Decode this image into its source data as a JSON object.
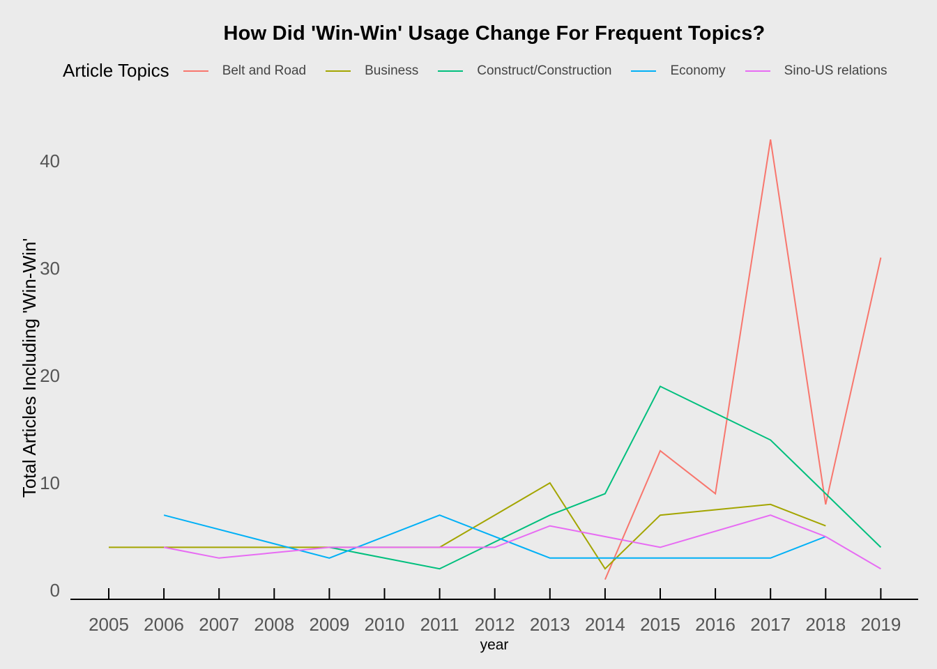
{
  "chart_data": {
    "type": "line",
    "title": "How Did 'Win-Win' Usage Change For Frequent Topics?",
    "xlabel": "year",
    "ylabel": "Total Articles Including 'Win-Win'",
    "xlim": [
      2005,
      2019
    ],
    "ylim": [
      0,
      42
    ],
    "x_ticks": [
      "2005",
      "2006",
      "2007",
      "2008",
      "2009",
      "2010",
      "2011",
      "2012",
      "2013",
      "2014",
      "2015",
      "2016",
      "2017",
      "2018",
      "2019"
    ],
    "y_ticks": [
      "0",
      "10",
      "20",
      "30",
      "40"
    ],
    "grid": false,
    "legend_title": "Article Topics",
    "legend_position": "top",
    "series": [
      {
        "name": "Belt and Road",
        "color": "#f8766d",
        "x": [
          2014,
          2015,
          2016,
          2017,
          2018,
          2019
        ],
        "values": [
          1,
          13,
          9,
          42,
          8,
          31
        ]
      },
      {
        "name": "Business",
        "color": "#a3a500",
        "x": [
          2005,
          2006,
          2007,
          2008,
          2009,
          2010,
          2011,
          2012,
          2013,
          2014,
          2015,
          2016,
          2017,
          2018
        ],
        "values": [
          4,
          4,
          4,
          4,
          4,
          4,
          4,
          7,
          10,
          2,
          7,
          7.5,
          8,
          6
        ]
      },
      {
        "name": "Construct/Construction",
        "color": "#00bf7d",
        "x": [
          2009,
          2011,
          2013,
          2014,
          2015,
          2017,
          2019
        ],
        "values": [
          4,
          2,
          7,
          9,
          19,
          14,
          4
        ]
      },
      {
        "name": "Economy",
        "color": "#00b0f6",
        "x": [
          2006,
          2009,
          2011,
          2013,
          2014,
          2015,
          2016,
          2017,
          2018
        ],
        "values": [
          7,
          3,
          7,
          3,
          3,
          3,
          3,
          3,
          5
        ]
      },
      {
        "name": "Sino-US relations",
        "color": "#e76bf3",
        "x": [
          2006,
          2007,
          2009,
          2010,
          2011,
          2012,
          2013,
          2015,
          2017,
          2018,
          2019
        ],
        "values": [
          4,
          3,
          4,
          4,
          4,
          4,
          6,
          4,
          7,
          5,
          2
        ]
      }
    ]
  }
}
